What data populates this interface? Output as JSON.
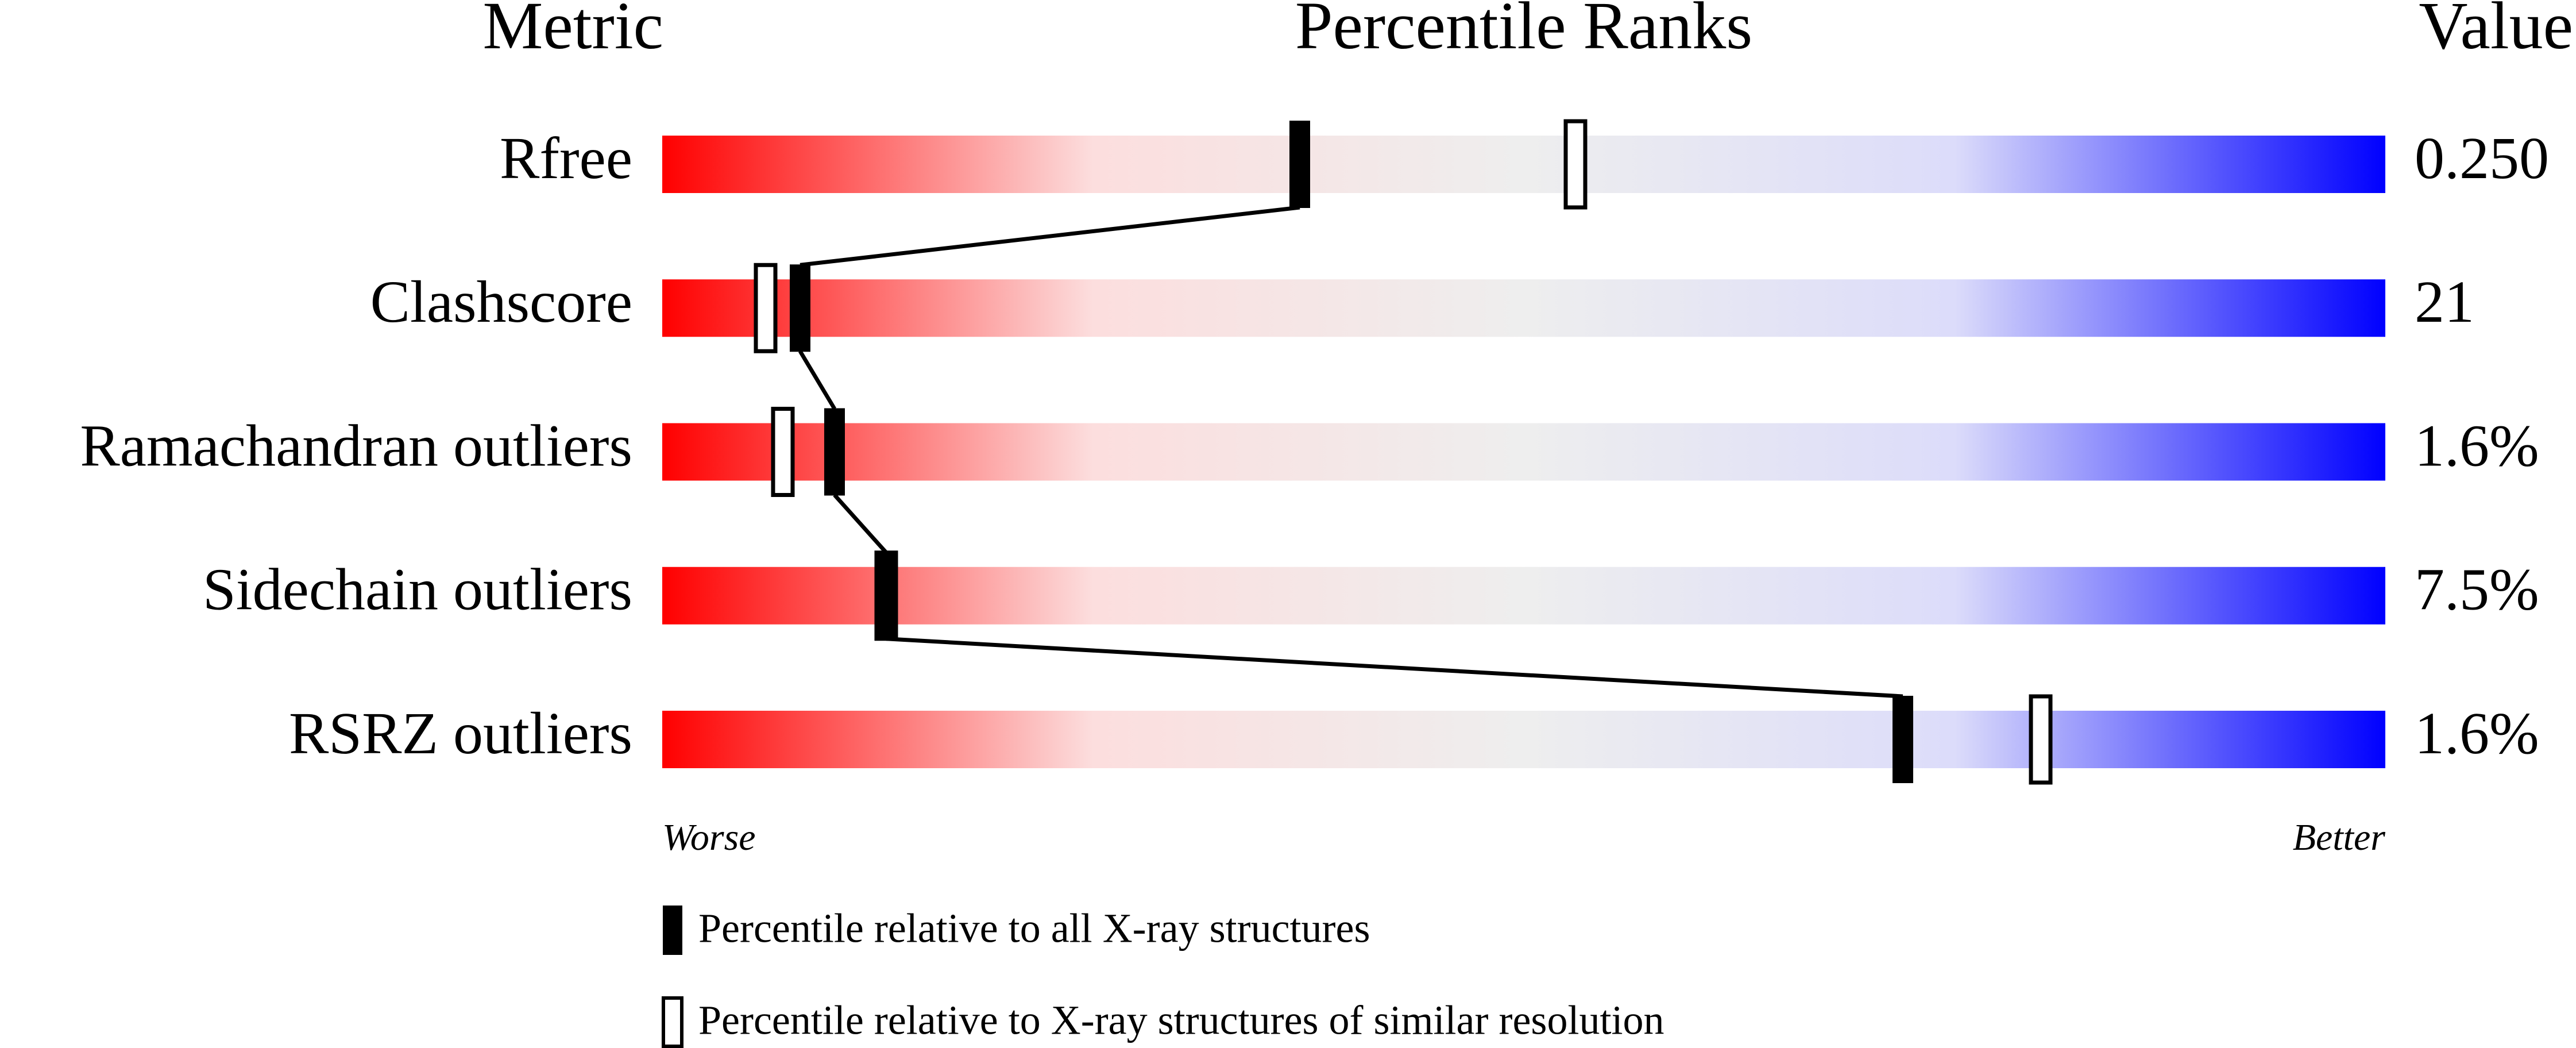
{
  "chart_data": {
    "type": "percentile-slider",
    "title_left": "Metric",
    "title": "Percentile Ranks",
    "title_right": "Value",
    "categories": [
      "Rfree",
      "Clashscore",
      "Ramachandran outliers",
      "Sidechain outliers",
      "RSRZ outliers"
    ],
    "metric_values": [
      "0.250",
      "21",
      "1.6%",
      "7.5%",
      "1.6%"
    ],
    "xlim": [
      0,
      100
    ],
    "gradient": [
      "#ff0000",
      "#fcdede",
      "#eeeeee",
      "#dcdcfa",
      "#0000ff"
    ],
    "low_label": "Worse",
    "high_label": "Better",
    "series": [
      {
        "name": "Percentile relative to all X-ray structures",
        "color": "#000000",
        "marker": "filled",
        "values": [
          37,
          8,
          10,
          13,
          72
        ]
      },
      {
        "name": "Percentile relative to X-ray structures of similar resolution",
        "color": "#000000",
        "marker": "hollow",
        "values": [
          53,
          6,
          7,
          13,
          80
        ]
      }
    ]
  }
}
